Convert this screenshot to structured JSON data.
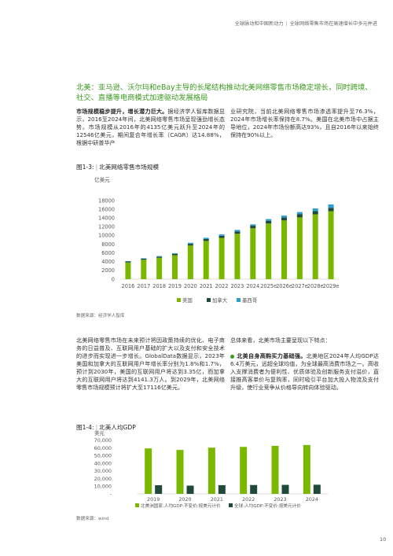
{
  "header": {
    "left": "全球脉动和中国新动力",
    "sep": "|",
    "right": "全球网络零售市场在高速增长中多元并进"
  },
  "headline": "北美：亚马逊、沃尔玛和eBay主导的长尾结构推动北美网络零售市场稳定增长，同时跨境、社交、直播等电商模式加速驱动发展格局",
  "section1": {
    "left_lead": "市场规模稳步提升，增长潜力巨大。",
    "left_body": "据经济学人智库数据显示，2016至2024年间，北美网络零售市场呈现强劲增长态势。市场规模从2016年的4135亿美元跃升至2024年的12546亿美元，期间复合年增长率（CAGR）达14.88%，根据中研普华产",
    "right_body": "业研究院，当前北美网络零售市场渗透率提升至76.3%，2024年市场增长率保持在8.7%。美国在北美市场中占据主导地位，2024年市场份额高达93%，且自2016年以来始终保持在90%以上。"
  },
  "fig1": {
    "title_prefix": "图1-3:",
    "title": "北美网络零售市场规模",
    "source": "数据来源：经济学人智库"
  },
  "section2": {
    "left_body": "北美网络零售市场在未来预计将因政策持续的优化、电子商务的日益普及、互联网用户基础的扩大以及支付和安全技术的进步而实现进一步增长。GlobalData数据显示，2023年美国和加拿大的互联网用户年增长率分别为1.8%和1.7%，预计到2030年，美国的互联网用户将达到3.35亿，而加拿大的互联网用户将达到4141.3万人。到2029年，北美网络零售市场规模预计将扩大至17116亿美元。",
    "right_intro": "总体来看，北美市场主要呈现以下特点：",
    "right_lead": "北美自身高购买力基础强。",
    "right_body": "北美地区2024年人均GDP达6.4万美元，远超全球均值，为全球最高消费市场之一。高收入支撑消费者为便利性、优质体验及创新服务支付溢价，直接推高客单价与复购率，同时吸引平台加大投入物流及支付升级，使行业竞争从价格导向转向体验驱动。"
  },
  "fig2": {
    "title_prefix": "图1-4:",
    "title": "北美人均GDP",
    "source": "数据来源：wind"
  },
  "page_number": "10",
  "colors": {
    "us": "#7ab800",
    "canada": "#1f4a3a",
    "mexico": "#2b9fd0",
    "gdp_na": "#7ab800",
    "gdp_world": "#1f4a3a",
    "accent": "#3a9a1e"
  },
  "chart_data": [
    {
      "type": "bar",
      "stacked": true,
      "ylabel": "亿美元",
      "ylim": [
        0,
        18000
      ],
      "yticks": [
        "0",
        "2000",
        "4000",
        "6000",
        "8000",
        "10000",
        "12000",
        "14000",
        "16000",
        "18000"
      ],
      "categories": [
        "2016",
        "2017",
        "2018",
        "2019",
        "2020",
        "2021",
        "2022",
        "2023",
        "2024",
        "2025e",
        "2026e",
        "2027e",
        "2028e",
        "2029e"
      ],
      "series": [
        {
          "name": "美国",
          "values": [
            3850,
            4450,
            4900,
            5500,
            7700,
            8750,
            9450,
            10400,
            11650,
            12750,
            13450,
            14150,
            14850,
            15550
          ]
        },
        {
          "name": "加拿大",
          "values": [
            200,
            230,
            260,
            300,
            380,
            440,
            480,
            520,
            580,
            620,
            660,
            700,
            740,
            780
          ]
        },
        {
          "name": "墨西哥",
          "values": [
            85,
            100,
            120,
            150,
            250,
            290,
            320,
            360,
            316,
            390,
            450,
            520,
            600,
            786
          ]
        }
      ],
      "legend_position": "bottom",
      "grid": false
    },
    {
      "type": "bar",
      "ylabel": "美元",
      "ylim": [
        0,
        70000
      ],
      "yticks": [
        "-",
        "10,000",
        "20,000",
        "30,000",
        "40,000",
        "50,000",
        "60,000",
        "70,000"
      ],
      "categories": [
        "2019",
        "2020",
        "2021",
        "2022",
        "2023",
        "2024"
      ],
      "series": [
        {
          "name": "北美洲国家:人均GDP:不变价:按美元计价",
          "values": [
            59500,
            57500,
            60500,
            61500,
            62800,
            64000
          ]
        },
        {
          "name": "全球:人均GDP:不变价:按美元计价",
          "values": [
            11300,
            10800,
            11400,
            11600,
            11800,
            12000
          ]
        }
      ],
      "legend_position": "bottom",
      "grid": false
    }
  ]
}
